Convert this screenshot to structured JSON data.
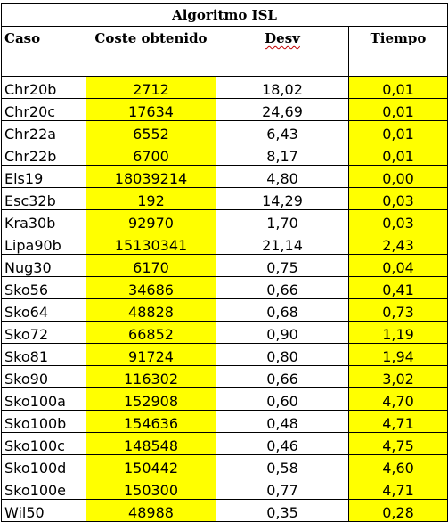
{
  "title": "Algoritmo ISL",
  "headers": {
    "caso": "Caso",
    "coste": "Coste obtenido",
    "desv": "Desv",
    "tiempo": "Tiempo"
  },
  "colors": {
    "highlight": "#ffff00",
    "spellcheck_underline": "#c00000"
  },
  "rows": [
    {
      "caso": "Chr20b",
      "coste": "2712",
      "desv": "18,02",
      "tiempo": "0,01"
    },
    {
      "caso": "Chr20c",
      "coste": "17634",
      "desv": "24,69",
      "tiempo": "0,01"
    },
    {
      "caso": "Chr22a",
      "coste": "6552",
      "desv": "6,43",
      "tiempo": "0,01"
    },
    {
      "caso": "Chr22b",
      "coste": "6700",
      "desv": "8,17",
      "tiempo": "0,01"
    },
    {
      "caso": "Els19",
      "coste": "18039214",
      "desv": "4,80",
      "tiempo": "0,00"
    },
    {
      "caso": "Esc32b",
      "coste": "192",
      "desv": "14,29",
      "tiempo": "0,03"
    },
    {
      "caso": "Kra30b",
      "coste": "92970",
      "desv": "1,70",
      "tiempo": "0,03"
    },
    {
      "caso": "Lipa90b",
      "coste": "15130341",
      "desv": "21,14",
      "tiempo": "2,43"
    },
    {
      "caso": "Nug30",
      "coste": "6170",
      "desv": "0,75",
      "tiempo": "0,04"
    },
    {
      "caso": "Sko56",
      "coste": "34686",
      "desv": "0,66",
      "tiempo": "0,41"
    },
    {
      "caso": "Sko64",
      "coste": "48828",
      "desv": "0,68",
      "tiempo": "0,73"
    },
    {
      "caso": "Sko72",
      "coste": "66852",
      "desv": "0,90",
      "tiempo": "1,19"
    },
    {
      "caso": "Sko81",
      "coste": "91724",
      "desv": "0,80",
      "tiempo": "1,94"
    },
    {
      "caso": "Sko90",
      "coste": "116302",
      "desv": "0,66",
      "tiempo": "3,02"
    },
    {
      "caso": "Sko100a",
      "coste": "152908",
      "desv": "0,60",
      "tiempo": "4,70"
    },
    {
      "caso": "Sko100b",
      "coste": "154636",
      "desv": "0,48",
      "tiempo": "4,71"
    },
    {
      "caso": "Sko100c",
      "coste": "148548",
      "desv": "0,46",
      "tiempo": "4,75"
    },
    {
      "caso": "Sko100d",
      "coste": "150442",
      "desv": "0,58",
      "tiempo": "4,60"
    },
    {
      "caso": "Sko100e",
      "coste": "150300",
      "desv": "0,77",
      "tiempo": "4,71"
    },
    {
      "caso": "Wil50",
      "coste": "48988",
      "desv": "0,35",
      "tiempo": "0,28"
    }
  ]
}
